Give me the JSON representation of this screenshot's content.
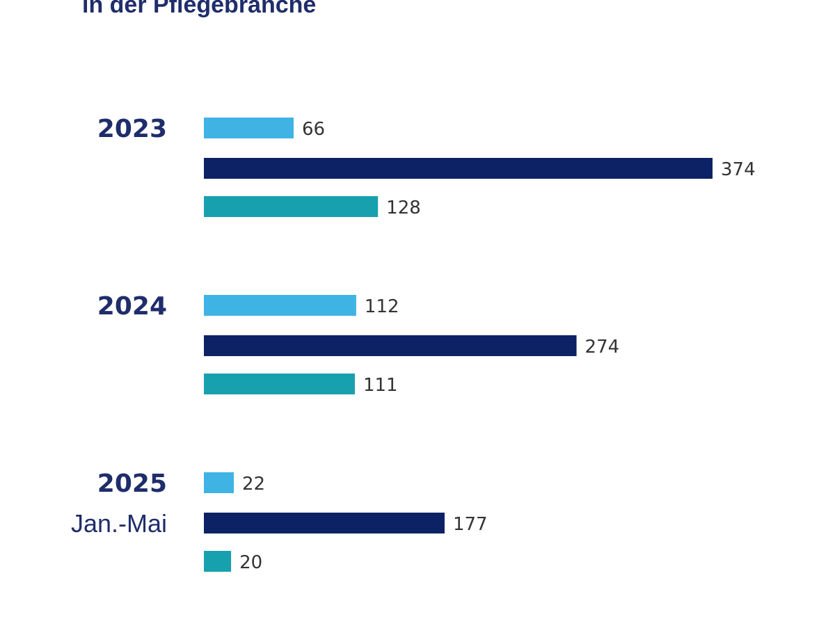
{
  "chart_data": {
    "type": "bar",
    "orientation": "horizontal",
    "title": "in der Pflegebranche",
    "categories": [
      "2023",
      "2024",
      "2025"
    ],
    "category_sublabels": [
      "",
      "",
      "Jan.-Mai"
    ],
    "series": [
      {
        "name": "series-1",
        "color": "#3fb3e4",
        "values": [
          66,
          112,
          22
        ]
      },
      {
        "name": "series-2",
        "color": "#0c2265",
        "values": [
          374,
          274,
          177
        ]
      },
      {
        "name": "series-3",
        "color": "#17a0ae",
        "values": [
          128,
          111,
          20
        ]
      }
    ],
    "xlim": [
      0,
      374
    ],
    "grid": false,
    "data_labels": true
  }
}
